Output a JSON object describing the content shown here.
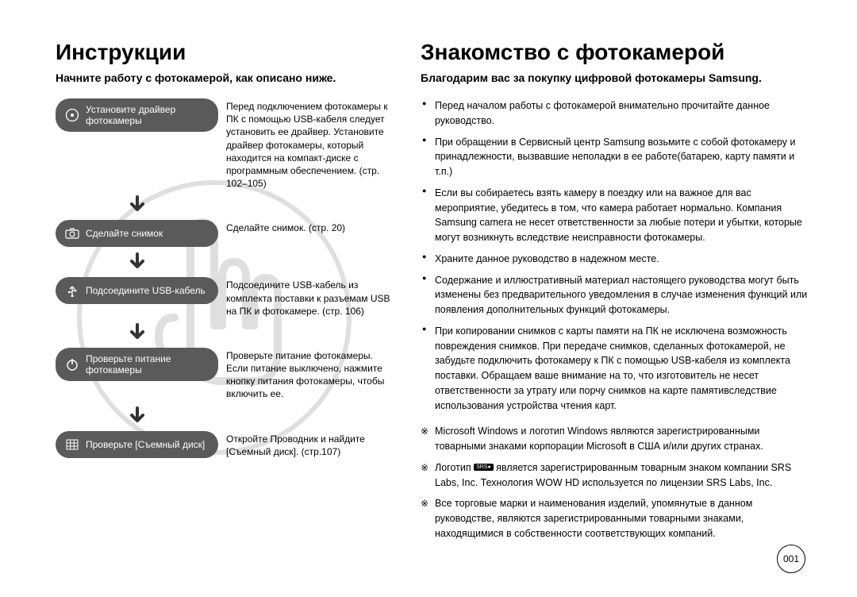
{
  "left": {
    "title": "Инструкции",
    "subtitl": "Начните работу с фотокамерой, как описано ниже.",
    "steps": [
      {
        "icon": "disc-icon",
        "label": "Установите драйвер фотокамеры",
        "text": "Перед подключением фотокамеры к ПК с помощью USB-кабеля следует установить ее драйвер. Установите драйвер фотокамеры, который находится на компакт-диске с программным обеспечением. (стр. 102–105)"
      },
      {
        "icon": "camera-icon",
        "label": "Сделайте снимок",
        "text": "Сделайте снимок. (стр. 20)"
      },
      {
        "icon": "usb-icon",
        "label": "Подсоедините USB-кабель",
        "text": "Подсоедините USB-кабель из комплекта поставки к разъемам USB на ПК и фотокамере. (стр. 106)"
      },
      {
        "icon": "power-icon",
        "label": "Проверьте питание фотокамеры",
        "text": "Проверьте питание фотокамеры. Если питание выключено, нажмите кнопку питания фотокамеры, чтобы включить ее."
      },
      {
        "icon": "grid-icon",
        "label": "Проверьте [Съемный диск]",
        "text": "Откройте Проводник и найдите [Съемный диск]. (стр.107)"
      }
    ]
  },
  "right": {
    "title": "Знакомство с фотокамерой",
    "subtitl": "Благодарим вас за покупку цифровой фотокамеры Samsung.",
    "bullets": [
      "Перед началом работы с фотокамерой внимательно прочитайте данное руководство.",
      "При обращении в Сервисный центр Samsung возьмите с собой фотокамеру и принадлежности, вызвавшие неполадки в ее работе(батарею, карту памяти и т.п.)",
      "Если вы собираетесь взять камеру в поездку или на важное для вас мероприятие, убедитесь в том, что камера работает нормально. Компания Samsung camera не несет ответственности за любые потери и убытки, которые могут возникнуть вследствие неисправности фотокамеры.",
      "Храните данное руководство в надежном месте.",
      "Содержание и иллюстративный материал настоящего руководства могут быть изменены без предварительного уведомления в случае изменения функций или появления дополнительных функций фотокамеры.",
      "При копировании снимков с карты памяти на ПК не исключена возможность повреждения снимков. При передаче снимков, сделанных фотокамерой, не забудьте подключить фотокамеру к ПК с помощью USB-кабеля из комплекта поставки. Обращаем ваше внимание на то, что изготовитель не несет ответственности за утрату или порчу снимков на карте памятивследствие использования устройства чтения карт."
    ],
    "notes": [
      "Microsoft Windows и логотип Windows являются зарегистрированными товарными знаками корпорации Microsoft в США и/или других странах.",
      "Логотип __SRS__ является зарегистрированным товарным знаком компании SRS Labs, Inc. Технология WOW HD используется по лицензии SRS Labs, Inc.",
      "Все торговые марки и наименования изделий, упомянутые в данном руководстве, являются зарегистрированными товарными знаками, находящимися в собственности соответствующих компаний."
    ],
    "srs_label": "SRS"
  },
  "page_number": "001",
  "colors": {
    "pill_bg": "#5a5a5a",
    "pill_text": "#ffffff",
    "text": "#000000"
  }
}
